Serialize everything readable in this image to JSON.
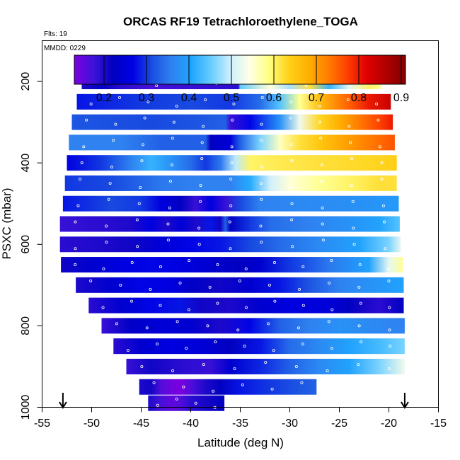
{
  "chart_data": {
    "type": "heatmap",
    "title": "ORCAS RF19 Tetrachloroethylene_TOGA",
    "flights_note": "Flts: 19",
    "date_note": "MMDD: 0229",
    "xlabel": "Latitude (deg N)",
    "ylabel": "PSXC (mbar)",
    "xlim": [
      -55,
      -15
    ],
    "ylim": [
      1000,
      100
    ],
    "x_ticks": [
      -55,
      -50,
      -45,
      -40,
      -35,
      -30,
      -25,
      -20,
      -15
    ],
    "y_ticks": [
      200,
      400,
      600,
      800,
      1000
    ],
    "colorbar": {
      "range": [
        0.13,
        0.91
      ],
      "ticks": [
        0.2,
        0.3,
        0.4,
        0.5,
        0.6,
        0.7,
        0.8,
        0.9
      ],
      "colors": [
        "#7b00e0",
        "#3d12d8",
        "#0000c0",
        "#0000e6",
        "#1a4fe0",
        "#2f82f0",
        "#1fa6ff",
        "#66ccff",
        "#cceeff",
        "#ffffe6",
        "#ffff80",
        "#ffd21a",
        "#ffb000",
        "#ff8000",
        "#ff4000",
        "#e00000",
        "#b00000",
        "#800000"
      ]
    },
    "markers": [
      -52.9,
      -18.4
    ],
    "layers": [
      {
        "p": 200,
        "lat_min": -51.0,
        "lat_max": -20.8,
        "stops": [
          [
            -51,
            0.2
          ],
          [
            -49,
            0.22
          ],
          [
            -47,
            0.19
          ],
          [
            -44,
            0.17
          ],
          [
            -40,
            0.18
          ],
          [
            -35.2,
            0.19
          ],
          [
            -35,
            0.45
          ],
          [
            -32,
            0.55
          ],
          [
            -30,
            0.48
          ],
          [
            -28,
            0.62
          ],
          [
            -26,
            0.42
          ],
          [
            -24,
            0.52
          ],
          [
            -22,
            0.6
          ],
          [
            -20.8,
            0.58
          ]
        ]
      },
      {
        "p": 250,
        "lat_min": -51.5,
        "lat_max": -19.8,
        "stops": [
          [
            -51.5,
            0.28
          ],
          [
            -45,
            0.3
          ],
          [
            -40,
            0.31
          ],
          [
            -36,
            0.3
          ],
          [
            -33,
            0.34
          ],
          [
            -31,
            0.44
          ],
          [
            -29,
            0.58
          ],
          [
            -27,
            0.66
          ],
          [
            -24,
            0.75
          ],
          [
            -22,
            0.8
          ],
          [
            -19.8,
            0.84
          ]
        ]
      },
      {
        "p": 300,
        "lat_min": -52.0,
        "lat_max": -19.6,
        "stops": [
          [
            -52,
            0.32
          ],
          [
            -44,
            0.31
          ],
          [
            -39,
            0.32
          ],
          [
            -36.5,
            0.33
          ],
          [
            -36,
            0.18
          ],
          [
            -34,
            0.27
          ],
          [
            -31,
            0.38
          ],
          [
            -29,
            0.53
          ],
          [
            -27,
            0.63
          ],
          [
            -25,
            0.68
          ],
          [
            -23,
            0.73
          ],
          [
            -21,
            0.77
          ],
          [
            -19.6,
            0.8
          ]
        ]
      },
      {
        "p": 350,
        "lat_min": -52.3,
        "lat_max": -19.4,
        "stops": [
          [
            -52.3,
            0.36
          ],
          [
            -47,
            0.36
          ],
          [
            -43,
            0.33
          ],
          [
            -38.5,
            0.33
          ],
          [
            -38,
            0.22
          ],
          [
            -36,
            0.25
          ],
          [
            -35,
            0.33
          ],
          [
            -33,
            0.46
          ],
          [
            -31,
            0.56
          ],
          [
            -29,
            0.62
          ],
          [
            -27,
            0.65
          ],
          [
            -24,
            0.7
          ],
          [
            -21,
            0.74
          ],
          [
            -19.4,
            0.76
          ]
        ]
      },
      {
        "p": 400,
        "lat_min": -52.5,
        "lat_max": -19.2,
        "stops": [
          [
            -52.5,
            0.26
          ],
          [
            -49,
            0.3
          ],
          [
            -46,
            0.36
          ],
          [
            -44,
            0.42
          ],
          [
            -42,
            0.38
          ],
          [
            -40,
            0.34
          ],
          [
            -38.5,
            0.3
          ],
          [
            -37,
            0.35
          ],
          [
            -35.5,
            0.49
          ],
          [
            -34,
            0.6
          ],
          [
            -31,
            0.61
          ],
          [
            -27,
            0.62
          ],
          [
            -22,
            0.63
          ],
          [
            -19.2,
            0.64
          ]
        ]
      },
      {
        "p": 450,
        "lat_min": -52.7,
        "lat_max": -19.2,
        "stops": [
          [
            -52.7,
            0.3
          ],
          [
            -48,
            0.31
          ],
          [
            -43,
            0.35
          ],
          [
            -39,
            0.36
          ],
          [
            -36,
            0.36
          ],
          [
            -34,
            0.41
          ],
          [
            -32,
            0.5
          ],
          [
            -30,
            0.55
          ],
          [
            -27,
            0.58
          ],
          [
            -24,
            0.6
          ],
          [
            -21,
            0.62
          ],
          [
            -19.2,
            0.62
          ]
        ]
      },
      {
        "p": 500,
        "lat_min": -52.9,
        "lat_max": -19.0,
        "stops": [
          [
            -52.9,
            0.28
          ],
          [
            -48,
            0.31
          ],
          [
            -45,
            0.3
          ],
          [
            -43,
            0.26
          ],
          [
            -41,
            0.22
          ],
          [
            -39.5,
            0.18
          ],
          [
            -38,
            0.26
          ],
          [
            -36.5,
            0.18
          ],
          [
            -35,
            0.31
          ],
          [
            -33,
            0.36
          ],
          [
            -28,
            0.37
          ],
          [
            -22,
            0.38
          ],
          [
            -19,
            0.39
          ]
        ]
      },
      {
        "p": 550,
        "lat_min": -53.2,
        "lat_max": -18.9,
        "stops": [
          [
            -53.2,
            0.18
          ],
          [
            -49,
            0.19
          ],
          [
            -46,
            0.2
          ],
          [
            -44,
            0.26
          ],
          [
            -42.5,
            0.2
          ],
          [
            -41,
            0.25
          ],
          [
            -39.5,
            0.2
          ],
          [
            -38,
            0.28
          ],
          [
            -37,
            0.21
          ],
          [
            -36.5,
            0.33
          ],
          [
            -36,
            0.22
          ],
          [
            -34,
            0.3
          ],
          [
            -32,
            0.34
          ],
          [
            -28,
            0.36
          ],
          [
            -24,
            0.38
          ],
          [
            -21,
            0.4
          ],
          [
            -18.9,
            0.44
          ]
        ]
      },
      {
        "p": 600,
        "lat_min": -53.2,
        "lat_max": -18.8,
        "stops": [
          [
            -53.2,
            0.19
          ],
          [
            -49,
            0.2
          ],
          [
            -46,
            0.21
          ],
          [
            -43,
            0.25
          ],
          [
            -40,
            0.27
          ],
          [
            -37,
            0.28
          ],
          [
            -34,
            0.31
          ],
          [
            -31,
            0.34
          ],
          [
            -27,
            0.37
          ],
          [
            -23,
            0.4
          ],
          [
            -20,
            0.46
          ],
          [
            -18.8,
            0.52
          ]
        ]
      },
      {
        "p": 650,
        "lat_min": -53.1,
        "lat_max": -18.6,
        "stops": [
          [
            -53.1,
            0.21
          ],
          [
            -50,
            0.24
          ],
          [
            -47,
            0.26
          ],
          [
            -44,
            0.27
          ],
          [
            -41,
            0.26
          ],
          [
            -38,
            0.24
          ],
          [
            -35,
            0.22
          ],
          [
            -33,
            0.24
          ],
          [
            -30,
            0.3
          ],
          [
            -26,
            0.35
          ],
          [
            -22,
            0.4
          ],
          [
            -20,
            0.52
          ],
          [
            -18.6,
            0.58
          ]
        ]
      },
      {
        "p": 700,
        "lat_min": -51.6,
        "lat_max": -18.5,
        "stops": [
          [
            -51.6,
            0.2
          ],
          [
            -48,
            0.24
          ],
          [
            -45,
            0.27
          ],
          [
            -42,
            0.26
          ],
          [
            -40,
            0.23
          ],
          [
            -37,
            0.21
          ],
          [
            -34,
            0.24
          ],
          [
            -31,
            0.28
          ],
          [
            -28,
            0.32
          ],
          [
            -25,
            0.36
          ],
          [
            -22,
            0.38
          ],
          [
            -18.5,
            0.4
          ]
        ]
      },
      {
        "p": 750,
        "lat_min": -50.3,
        "lat_max": -18.5,
        "stops": [
          [
            -50.3,
            0.19
          ],
          [
            -47,
            0.24
          ],
          [
            -44,
            0.27
          ],
          [
            -41,
            0.28
          ],
          [
            -39,
            0.21
          ],
          [
            -36,
            0.2
          ],
          [
            -33,
            0.24
          ],
          [
            -30,
            0.26
          ],
          [
            -26,
            0.25
          ],
          [
            -24,
            0.22
          ],
          [
            -21,
            0.19
          ],
          [
            -18.5,
            0.22
          ]
        ]
      },
      {
        "p": 800,
        "lat_min": -49.0,
        "lat_max": -18.4,
        "stops": [
          [
            -49,
            0.18
          ],
          [
            -46,
            0.23
          ],
          [
            -43,
            0.25
          ],
          [
            -40,
            0.24
          ],
          [
            -37,
            0.2
          ],
          [
            -34,
            0.27
          ],
          [
            -31,
            0.33
          ],
          [
            -28,
            0.36
          ],
          [
            -25,
            0.38
          ],
          [
            -22,
            0.37
          ],
          [
            -18.4,
            0.36
          ]
        ]
      },
      {
        "p": 850,
        "lat_min": -47.8,
        "lat_max": -18.4,
        "stops": [
          [
            -47.8,
            0.19
          ],
          [
            -45,
            0.24
          ],
          [
            -42,
            0.26
          ],
          [
            -39,
            0.25
          ],
          [
            -36,
            0.22
          ],
          [
            -33,
            0.28
          ],
          [
            -30,
            0.34
          ],
          [
            -27,
            0.37
          ],
          [
            -24,
            0.4
          ],
          [
            -21,
            0.43
          ],
          [
            -18.4,
            0.46
          ]
        ]
      },
      {
        "p": 900,
        "lat_min": -46.5,
        "lat_max": -18.4,
        "stops": [
          [
            -46.5,
            0.18
          ],
          [
            -44,
            0.21
          ],
          [
            -41,
            0.19
          ],
          [
            -38,
            0.18
          ],
          [
            -36,
            0.24
          ],
          [
            -33,
            0.29
          ],
          [
            -30,
            0.33
          ],
          [
            -27,
            0.37
          ],
          [
            -24,
            0.4
          ],
          [
            -21,
            0.46
          ],
          [
            -18.4,
            0.53
          ]
        ]
      },
      {
        "p": 950,
        "lat_min": -45.2,
        "lat_max": -27.3,
        "stops": [
          [
            -45.2,
            0.2
          ],
          [
            -44,
            0.21
          ],
          [
            -43,
            0.16
          ],
          [
            -42,
            0.14
          ],
          [
            -41,
            0.13
          ],
          [
            -40,
            0.16
          ],
          [
            -38.5,
            0.2
          ],
          [
            -37,
            0.22
          ],
          [
            -35,
            0.28
          ],
          [
            -32,
            0.3
          ],
          [
            -29,
            0.32
          ],
          [
            -27.3,
            0.33
          ]
        ]
      },
      {
        "p": 990,
        "lat_min": -44.3,
        "lat_max": -36.6,
        "stops": [
          [
            -44.3,
            0.2
          ],
          [
            -43,
            0.17
          ],
          [
            -42,
            0.15
          ],
          [
            -41,
            0.16
          ],
          [
            -40,
            0.19
          ],
          [
            -38,
            0.21
          ],
          [
            -36.6,
            0.22
          ]
        ]
      }
    ]
  }
}
